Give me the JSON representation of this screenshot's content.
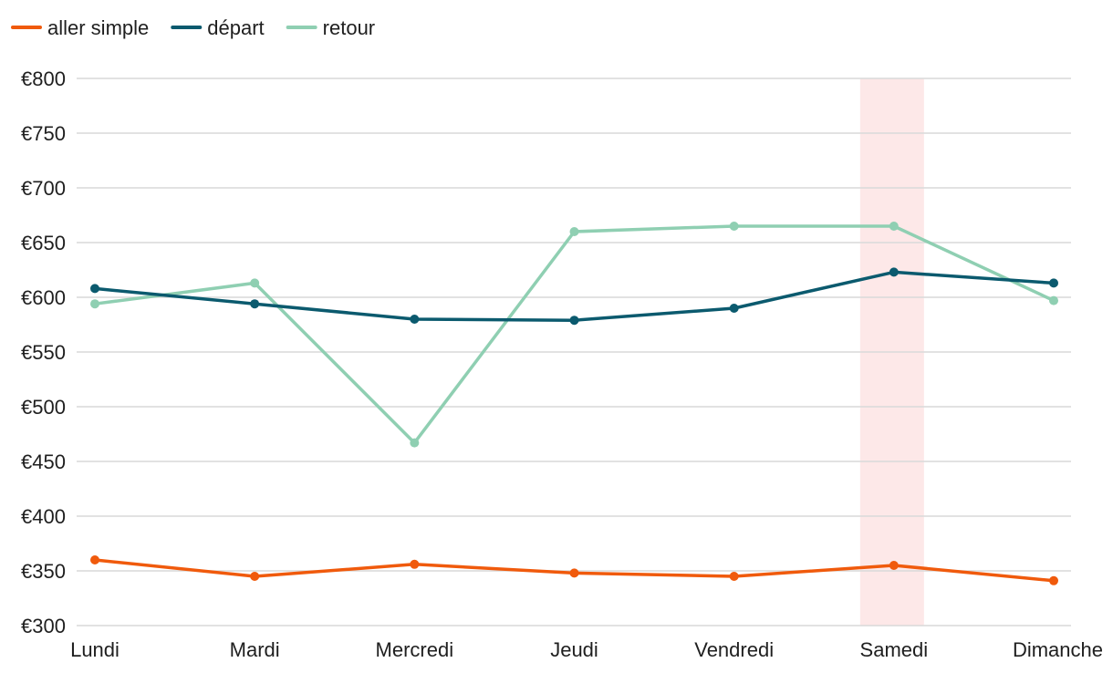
{
  "chart_data": {
    "type": "line",
    "title": "",
    "xlabel": "",
    "ylabel": "",
    "categories": [
      "Lundi",
      "Mardi",
      "Mercredi",
      "Jeudi",
      "Vendredi",
      "Samedi",
      "Dimanche"
    ],
    "ylim": [
      300,
      800
    ],
    "yticks": [
      300,
      350,
      400,
      450,
      500,
      550,
      600,
      650,
      700,
      750,
      800
    ],
    "ytick_prefix": "€",
    "grid": true,
    "legend_position": "top-left",
    "highlight_category": "Samedi",
    "highlight_color": "#fde8e8",
    "series": [
      {
        "name": "aller simple",
        "color": "#f05a0c",
        "values": [
          360,
          345,
          356,
          348,
          345,
          355,
          341
        ]
      },
      {
        "name": "départ",
        "color": "#0b5a6e",
        "values": [
          608,
          594,
          580,
          579,
          590,
          623,
          613
        ]
      },
      {
        "name": "retour",
        "color": "#8fcfb2",
        "values": [
          594,
          613,
          467,
          660,
          665,
          665,
          597
        ]
      }
    ]
  }
}
